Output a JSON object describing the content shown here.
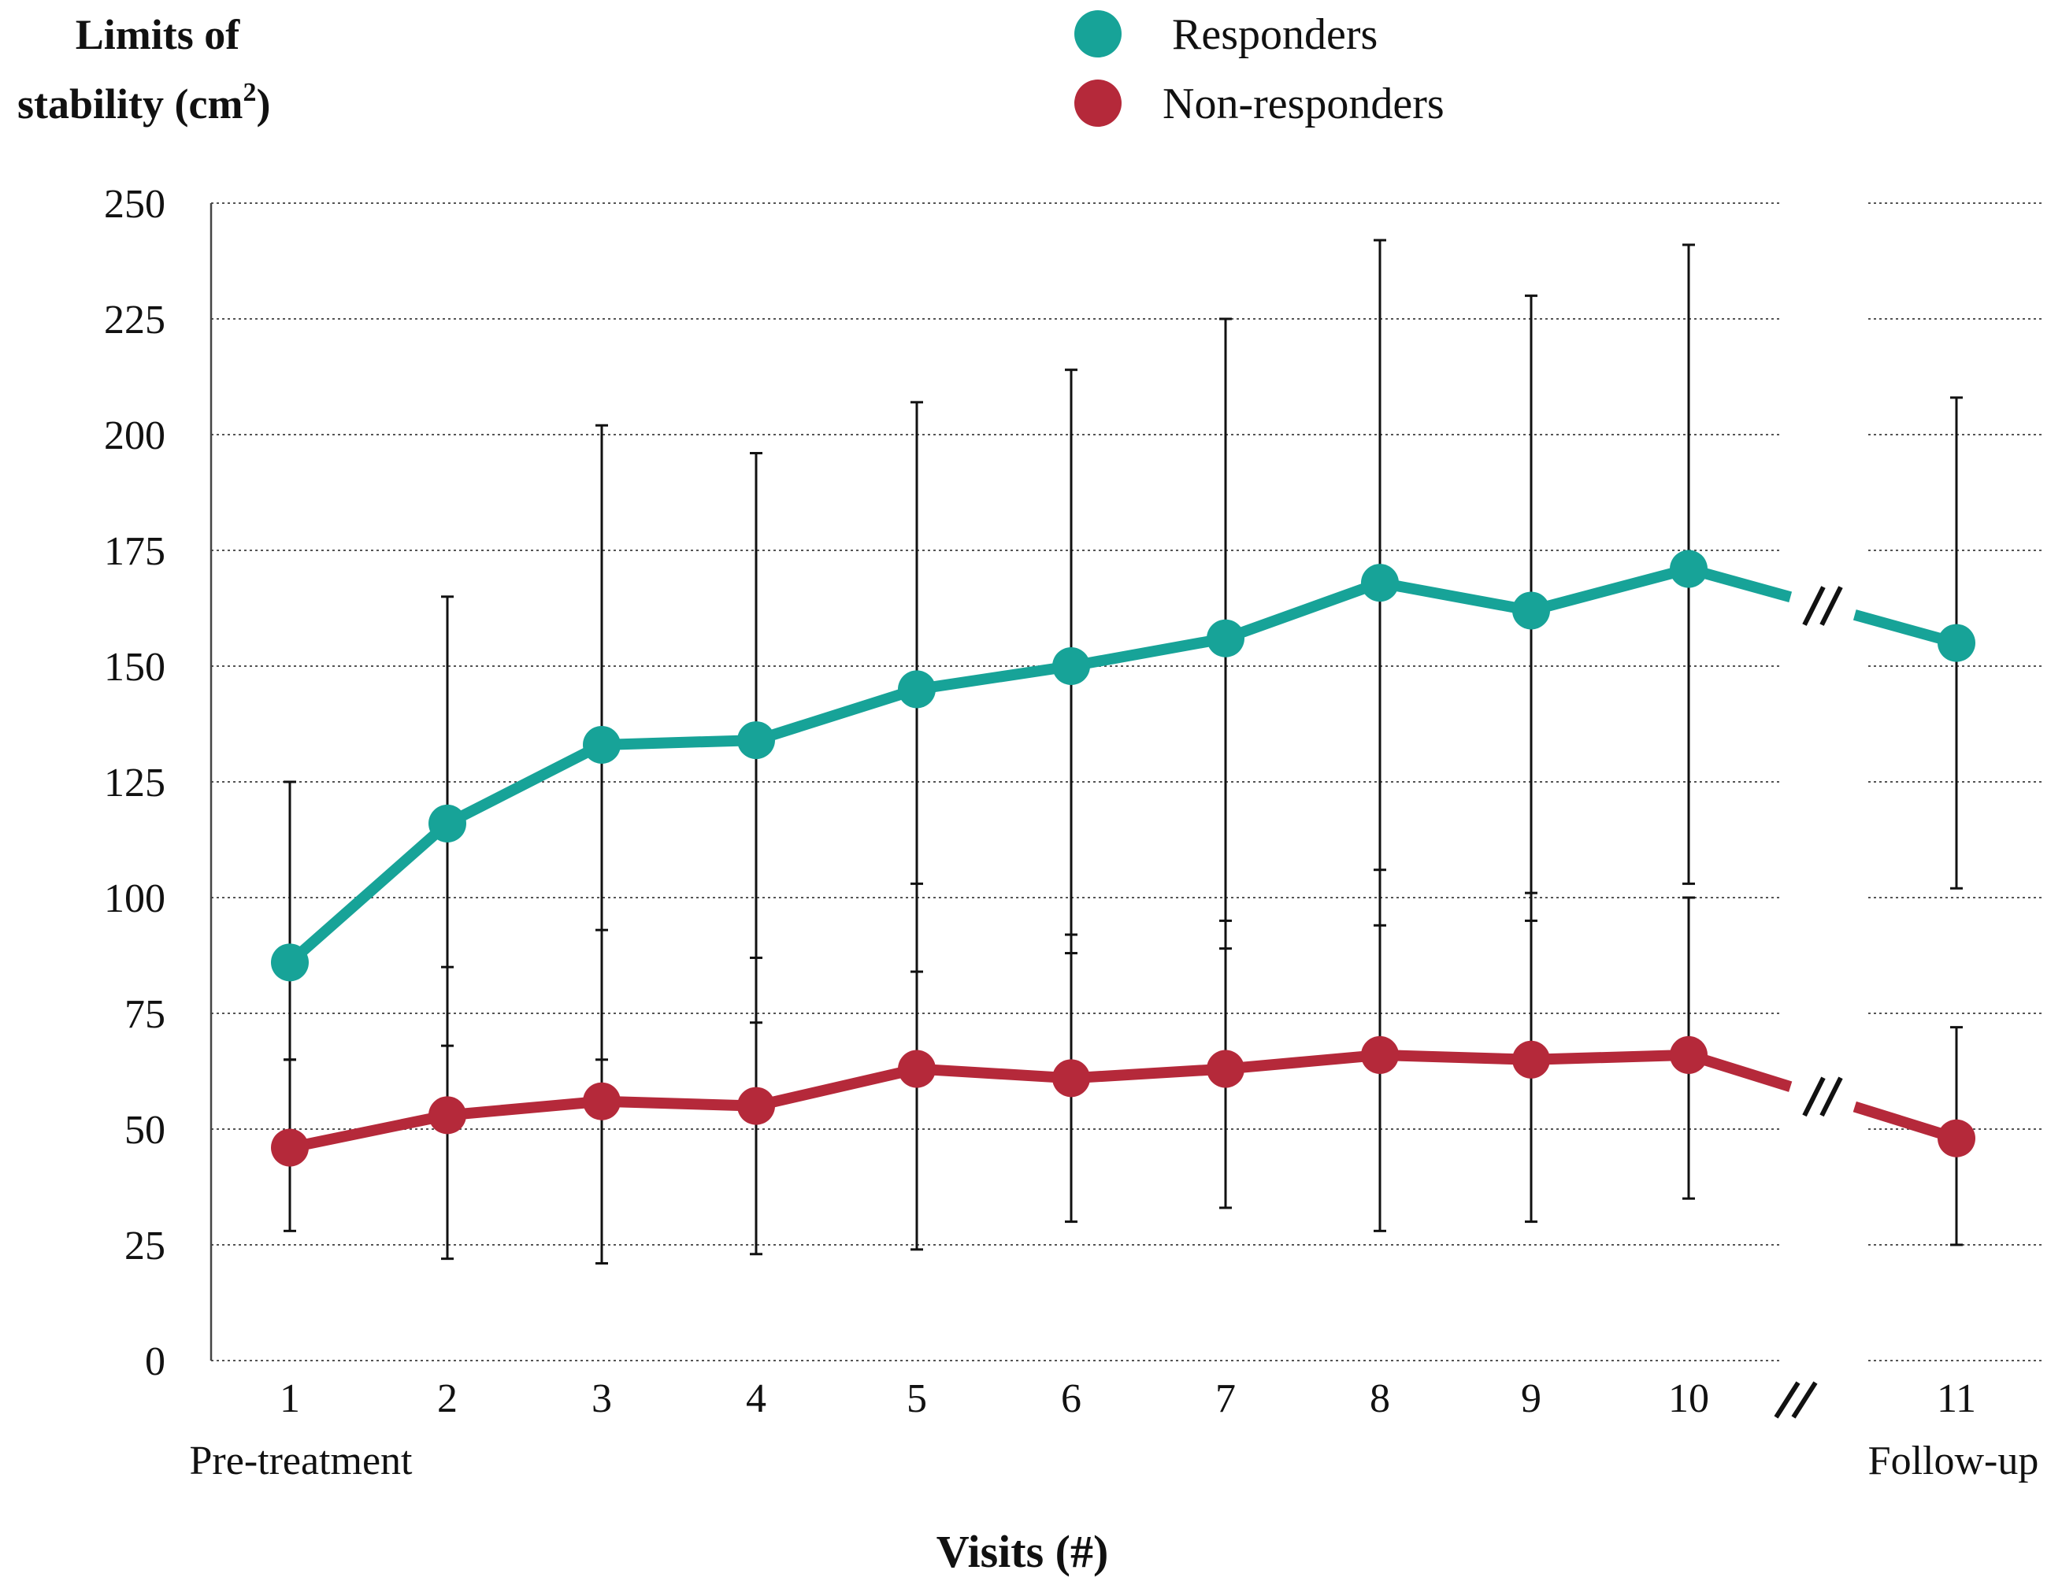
{
  "chart_data": {
    "type": "line",
    "y_title_line1": "Limits of",
    "y_title_line2": "stability (cm",
    "y_title_sup": "2",
    "y_title_close": ")",
    "xlabel": "Visits (#)",
    "ylim": [
      0,
      250
    ],
    "yticks": [
      0,
      25,
      50,
      75,
      100,
      125,
      150,
      175,
      200,
      225,
      250
    ],
    "x": [
      1,
      2,
      3,
      4,
      5,
      6,
      7,
      8,
      9,
      10,
      11
    ],
    "x_tick_labels": [
      "1",
      "2",
      "3",
      "4",
      "5",
      "6",
      "7",
      "8",
      "9",
      "10",
      "11"
    ],
    "x_sublabels": {
      "first": "Pre-treatment",
      "last": "Follow-up"
    },
    "axis_break_between": [
      10,
      11
    ],
    "grid": true,
    "legend_position": "top-center",
    "series": [
      {
        "name": "Responders",
        "color": "#17a398",
        "values": [
          86,
          116,
          133,
          134,
          145,
          150,
          156,
          168,
          162,
          171,
          155
        ],
        "err_upper": [
          125,
          165,
          202,
          196,
          207,
          214,
          225,
          242,
          230,
          241,
          208
        ],
        "err_lower": [
          65,
          68,
          65,
          73,
          84,
          88,
          89,
          94,
          95,
          103,
          102
        ]
      },
      {
        "name": "Non-responders",
        "color": "#b5293a",
        "values": [
          46,
          53,
          56,
          55,
          63,
          61,
          63,
          66,
          65,
          66,
          48
        ],
        "err_upper": [
          65,
          85,
          93,
          87,
          103,
          92,
          95,
          106,
          101,
          100,
          72
        ],
        "err_lower": [
          28,
          22,
          21,
          23,
          24,
          30,
          33,
          28,
          30,
          35,
          25
        ]
      }
    ]
  }
}
